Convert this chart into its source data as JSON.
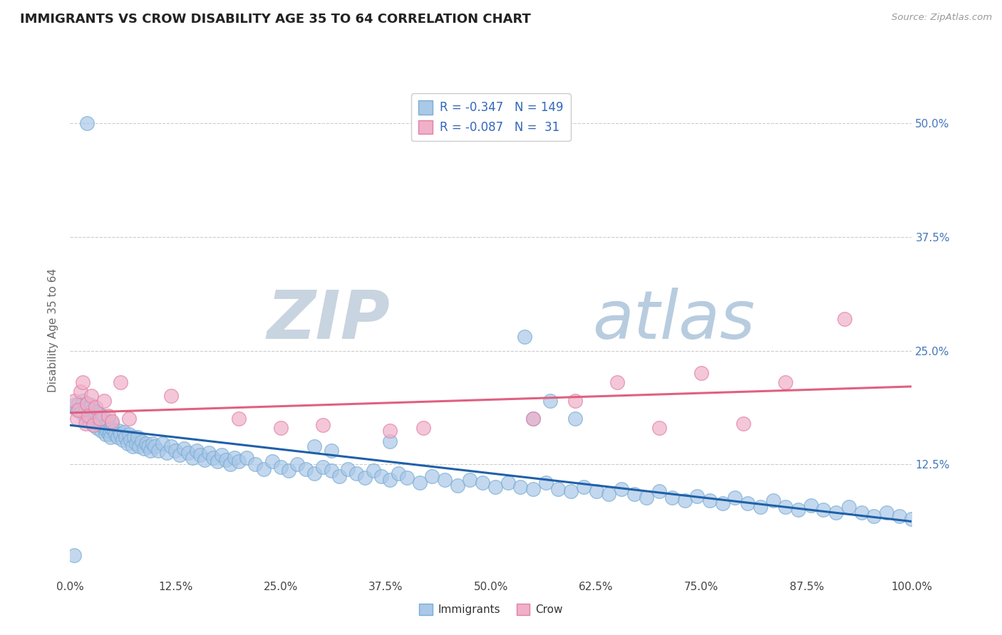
{
  "title": "IMMIGRANTS VS CROW DISABILITY AGE 35 TO 64 CORRELATION CHART",
  "source_text": "Source: ZipAtlas.com",
  "ylabel": "Disability Age 35 to 64",
  "legend_label_1": "Immigrants",
  "legend_label_2": "Crow",
  "r1": -0.347,
  "n1": 149,
  "r2": -0.087,
  "n2": 31,
  "color_immigrants_face": "#aac8e8",
  "color_immigrants_edge": "#7aadd4",
  "color_crow_face": "#f0b0c8",
  "color_crow_edge": "#e080a8",
  "line_color_immigrants": "#2060a8",
  "line_color_crow": "#e06080",
  "watermark_zip_color": "#d0dce8",
  "watermark_atlas_color": "#c0d4e8",
  "background_color": "#ffffff",
  "grid_color": "#cccccc",
  "xlim": [
    0.0,
    1.0
  ],
  "ylim": [
    0.0,
    0.545
  ],
  "xtick_labels": [
    "0.0%",
    "12.5%",
    "25.0%",
    "37.5%",
    "50.0%",
    "62.5%",
    "75.0%",
    "87.5%",
    "100.0%"
  ],
  "xtick_values": [
    0.0,
    0.125,
    0.25,
    0.375,
    0.5,
    0.625,
    0.75,
    0.875,
    1.0
  ],
  "ytick_labels": [
    "12.5%",
    "25.0%",
    "37.5%",
    "50.0%"
  ],
  "ytick_values": [
    0.125,
    0.25,
    0.375,
    0.5
  ],
  "immigrants_x": [
    0.005,
    0.008,
    0.01,
    0.012,
    0.014,
    0.015,
    0.016,
    0.018,
    0.019,
    0.02,
    0.021,
    0.022,
    0.023,
    0.024,
    0.025,
    0.026,
    0.027,
    0.028,
    0.029,
    0.03,
    0.031,
    0.032,
    0.033,
    0.034,
    0.035,
    0.036,
    0.037,
    0.038,
    0.039,
    0.04,
    0.041,
    0.042,
    0.043,
    0.044,
    0.045,
    0.046,
    0.047,
    0.048,
    0.049,
    0.05,
    0.052,
    0.054,
    0.056,
    0.058,
    0.06,
    0.062,
    0.064,
    0.066,
    0.068,
    0.07,
    0.072,
    0.074,
    0.076,
    0.078,
    0.08,
    0.082,
    0.085,
    0.088,
    0.09,
    0.093,
    0.095,
    0.098,
    0.1,
    0.105,
    0.11,
    0.115,
    0.12,
    0.125,
    0.13,
    0.135,
    0.14,
    0.145,
    0.15,
    0.155,
    0.16,
    0.165,
    0.17,
    0.175,
    0.18,
    0.185,
    0.19,
    0.195,
    0.2,
    0.21,
    0.22,
    0.23,
    0.24,
    0.25,
    0.26,
    0.27,
    0.28,
    0.29,
    0.3,
    0.31,
    0.32,
    0.33,
    0.34,
    0.35,
    0.36,
    0.37,
    0.38,
    0.39,
    0.4,
    0.415,
    0.43,
    0.445,
    0.46,
    0.475,
    0.49,
    0.505,
    0.52,
    0.535,
    0.55,
    0.565,
    0.58,
    0.595,
    0.61,
    0.625,
    0.64,
    0.655,
    0.67,
    0.685,
    0.7,
    0.715,
    0.73,
    0.745,
    0.76,
    0.775,
    0.79,
    0.805,
    0.82,
    0.835,
    0.85,
    0.865,
    0.88,
    0.895,
    0.91,
    0.925,
    0.94,
    0.955,
    0.97,
    0.985,
    1.0,
    0.6,
    0.02,
    0.54,
    0.57,
    0.55,
    0.38,
    0.29,
    0.31,
    0.005
  ],
  "immigrants_y": [
    0.19,
    0.185,
    0.192,
    0.188,
    0.183,
    0.195,
    0.18,
    0.185,
    0.175,
    0.192,
    0.178,
    0.188,
    0.172,
    0.182,
    0.19,
    0.175,
    0.185,
    0.168,
    0.178,
    0.182,
    0.172,
    0.165,
    0.175,
    0.18,
    0.168,
    0.172,
    0.162,
    0.17,
    0.178,
    0.165,
    0.168,
    0.158,
    0.168,
    0.162,
    0.172,
    0.158,
    0.162,
    0.155,
    0.165,
    0.17,
    0.162,
    0.158,
    0.155,
    0.162,
    0.158,
    0.152,
    0.16,
    0.155,
    0.148,
    0.158,
    0.152,
    0.145,
    0.155,
    0.148,
    0.155,
    0.145,
    0.15,
    0.142,
    0.148,
    0.145,
    0.14,
    0.148,
    0.145,
    0.14,
    0.148,
    0.138,
    0.145,
    0.14,
    0.135,
    0.142,
    0.138,
    0.132,
    0.14,
    0.135,
    0.13,
    0.138,
    0.132,
    0.128,
    0.135,
    0.13,
    0.125,
    0.132,
    0.128,
    0.132,
    0.125,
    0.12,
    0.128,
    0.122,
    0.118,
    0.125,
    0.12,
    0.115,
    0.122,
    0.118,
    0.112,
    0.12,
    0.115,
    0.11,
    0.118,
    0.112,
    0.108,
    0.115,
    0.11,
    0.105,
    0.112,
    0.108,
    0.102,
    0.108,
    0.105,
    0.1,
    0.105,
    0.1,
    0.098,
    0.105,
    0.098,
    0.095,
    0.1,
    0.095,
    0.092,
    0.098,
    0.092,
    0.088,
    0.095,
    0.088,
    0.085,
    0.09,
    0.085,
    0.082,
    0.088,
    0.082,
    0.078,
    0.085,
    0.078,
    0.075,
    0.08,
    0.075,
    0.072,
    0.078,
    0.072,
    0.068,
    0.072,
    0.068,
    0.065,
    0.175,
    0.5,
    0.265,
    0.195,
    0.175,
    0.15,
    0.145,
    0.14,
    0.025
  ],
  "crow_x": [
    0.005,
    0.008,
    0.01,
    0.012,
    0.015,
    0.018,
    0.02,
    0.022,
    0.025,
    0.028,
    0.03,
    0.035,
    0.04,
    0.045,
    0.05,
    0.06,
    0.07,
    0.12,
    0.2,
    0.25,
    0.3,
    0.38,
    0.42,
    0.55,
    0.6,
    0.65,
    0.7,
    0.75,
    0.8,
    0.85,
    0.92
  ],
  "crow_y": [
    0.195,
    0.175,
    0.185,
    0.205,
    0.215,
    0.17,
    0.192,
    0.178,
    0.2,
    0.168,
    0.188,
    0.175,
    0.195,
    0.178,
    0.172,
    0.215,
    0.175,
    0.2,
    0.175,
    0.165,
    0.168,
    0.162,
    0.165,
    0.175,
    0.195,
    0.215,
    0.165,
    0.225,
    0.17,
    0.215,
    0.285
  ]
}
